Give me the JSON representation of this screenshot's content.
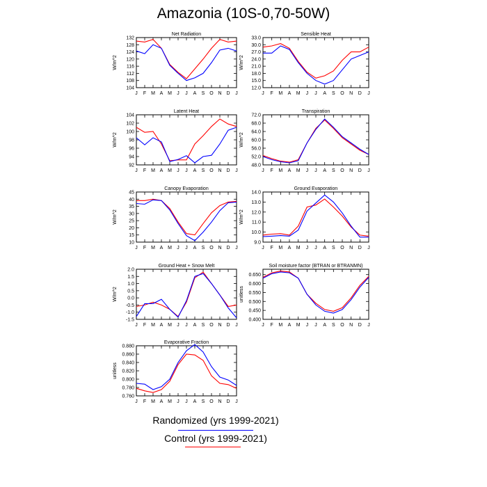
{
  "title": "Amazonia (10S-0,70-50W)",
  "colors": {
    "red": "#ff0000",
    "blue": "#0000ff"
  },
  "legend": {
    "entries": [
      {
        "label": "Randomized (yrs 1999-2021)",
        "color": "#0000ff"
      },
      {
        "label": "Control (yrs 1999-2021)",
        "color": "#ff0000"
      }
    ]
  },
  "chart_data": [
    {
      "type": "line",
      "title": "Net Radiation",
      "ylabel": "W/m^2",
      "categories": [
        "J",
        "F",
        "M",
        "A",
        "M",
        "J",
        "J",
        "A",
        "S",
        "O",
        "N",
        "D",
        "J"
      ],
      "ylim": [
        104,
        132
      ],
      "yticks": [
        "104",
        "108",
        "112",
        "116",
        "120",
        "124",
        "128",
        "132"
      ],
      "series": [
        {
          "color": "#ff0000",
          "values": [
            130,
            129.5,
            131,
            126,
            117,
            112.5,
            109,
            114.5,
            120,
            126,
            131,
            129.5,
            130
          ]
        },
        {
          "color": "#0000ff",
          "values": [
            124.5,
            123,
            128,
            126,
            116.5,
            112,
            108,
            109.5,
            112,
            118,
            125,
            126,
            124.5
          ]
        }
      ]
    },
    {
      "type": "line",
      "title": "Sensible Heat",
      "ylabel": "W/m^2",
      "categories": [
        "J",
        "F",
        "M",
        "A",
        "M",
        "J",
        "J",
        "A",
        "S",
        "O",
        "N",
        "D",
        "J"
      ],
      "ylim": [
        12,
        33
      ],
      "yticks": [
        "12.0",
        "15.0",
        "18.0",
        "21.0",
        "24.0",
        "27.0",
        "30.0",
        "33.0"
      ],
      "series": [
        {
          "color": "#ff0000",
          "values": [
            29,
            29.5,
            30.5,
            28.5,
            23,
            18.5,
            16,
            17,
            19,
            23.5,
            27,
            27,
            29
          ]
        },
        {
          "color": "#0000ff",
          "values": [
            26.5,
            26.5,
            29.5,
            28,
            22.5,
            18,
            15,
            13.5,
            15,
            19.5,
            24,
            25.5,
            27
          ]
        }
      ]
    },
    {
      "type": "line",
      "title": "Latent Heat",
      "ylabel": "W/m^2",
      "categories": [
        "J",
        "F",
        "M",
        "A",
        "M",
        "J",
        "J",
        "A",
        "S",
        "O",
        "N",
        "D",
        "J"
      ],
      "ylim": [
        92,
        104
      ],
      "yticks": [
        "92",
        "94",
        "96",
        "98",
        "100",
        "102",
        "104"
      ],
      "series": [
        {
          "color": "#ff0000",
          "values": [
            101,
            99.8,
            100,
            97,
            93,
            93.2,
            93.2,
            97,
            99,
            101.2,
            103,
            101.8,
            101.2
          ]
        },
        {
          "color": "#0000ff",
          "values": [
            98.5,
            96.8,
            98.5,
            97.5,
            92.8,
            93.3,
            94.2,
            92.5,
            94,
            94.3,
            97,
            100.3,
            101
          ]
        }
      ]
    },
    {
      "type": "line",
      "title": "Transpiration",
      "ylabel": "W/m^2",
      "categories": [
        "J",
        "F",
        "M",
        "A",
        "M",
        "J",
        "J",
        "A",
        "S",
        "O",
        "N",
        "D",
        "J"
      ],
      "ylim": [
        48,
        72
      ],
      "yticks": [
        "48.0",
        "52.0",
        "56.0",
        "60.0",
        "64.0",
        "68.0",
        "72.0"
      ],
      "series": [
        {
          "color": "#ff0000",
          "values": [
            52.5,
            51,
            49.8,
            49.3,
            50.5,
            58.5,
            65.5,
            69.5,
            65.5,
            61,
            58,
            55,
            53
          ]
        },
        {
          "color": "#0000ff",
          "values": [
            52,
            50.5,
            49.5,
            49,
            50,
            58.5,
            65,
            70,
            66,
            61.5,
            58.5,
            55.5,
            53
          ]
        }
      ]
    },
    {
      "type": "line",
      "title": "Canopy Evaporation",
      "ylabel": "W/m^2",
      "categories": [
        "J",
        "F",
        "M",
        "A",
        "M",
        "J",
        "J",
        "A",
        "S",
        "O",
        "N",
        "D",
        "J"
      ],
      "ylim": [
        10,
        45
      ],
      "yticks": [
        "10",
        "15",
        "20",
        "25",
        "30",
        "35",
        "40",
        "45"
      ],
      "series": [
        {
          "color": "#ff0000",
          "values": [
            39,
            39,
            40,
            39,
            33.5,
            24,
            16,
            15,
            23,
            30.5,
            35.5,
            38,
            38.5
          ]
        },
        {
          "color": "#0000ff",
          "values": [
            37,
            36.5,
            39.5,
            39,
            32.5,
            23,
            14.5,
            11,
            17,
            24,
            32,
            37.5,
            38
          ]
        }
      ]
    },
    {
      "type": "line",
      "title": "Ground Evaporation",
      "ylabel": "W/m^2",
      "categories": [
        "J",
        "F",
        "M",
        "A",
        "M",
        "J",
        "J",
        "A",
        "S",
        "O",
        "N",
        "D",
        "J"
      ],
      "ylim": [
        9,
        14
      ],
      "yticks": [
        "9.0",
        "10.0",
        "11.0",
        "12.0",
        "13.0",
        "14.0"
      ],
      "series": [
        {
          "color": "#ff0000",
          "values": [
            9.7,
            9.8,
            9.85,
            9.7,
            10.6,
            12.5,
            12.7,
            13.3,
            12.5,
            11.6,
            10.5,
            9.7,
            9.6
          ]
        },
        {
          "color": "#0000ff",
          "values": [
            9.55,
            9.6,
            9.65,
            9.6,
            10.2,
            12.1,
            12.9,
            13.7,
            13,
            11.9,
            10.6,
            9.5,
            9.5
          ]
        }
      ]
    },
    {
      "type": "line",
      "title": "Ground Heat + Snow Melt",
      "ylabel": "W/m^2",
      "categories": [
        "J",
        "F",
        "M",
        "A",
        "M",
        "J",
        "J",
        "A",
        "S",
        "O",
        "N",
        "D",
        "J"
      ],
      "ylim": [
        -1.5,
        2.0
      ],
      "yticks": [
        "-1.5",
        "-1.0",
        "-0.5",
        "0.0",
        "0.5",
        "1.0",
        "1.5",
        "2.0"
      ],
      "series": [
        {
          "color": "#ff0000",
          "values": [
            -0.6,
            -0.5,
            -0.3,
            -0.5,
            -0.8,
            -1.3,
            -0.3,
            1.4,
            1.8,
            1.0,
            0.2,
            -0.6,
            -0.5
          ]
        },
        {
          "color": "#0000ff",
          "values": [
            -1.3,
            -0.4,
            -0.4,
            -0.1,
            -0.8,
            -1.35,
            -0.2,
            1.5,
            1.7,
            1.0,
            0.2,
            -0.7,
            -1.4
          ]
        }
      ]
    },
    {
      "type": "line",
      "title": "Soil moisture factor (BTRAN or BTRANMN)",
      "ylabel": "unitless",
      "categories": [
        "J",
        "F",
        "M",
        "A",
        "M",
        "J",
        "J",
        "A",
        "S",
        "O",
        "N",
        "D",
        "J"
      ],
      "ylim": [
        0.4,
        0.68
      ],
      "yticks": [
        "0.400",
        "0.450",
        "0.500",
        "0.550",
        "0.600",
        "0.650"
      ],
      "series": [
        {
          "color": "#ff0000",
          "values": [
            0.635,
            0.66,
            0.67,
            0.665,
            0.63,
            0.54,
            0.49,
            0.455,
            0.445,
            0.465,
            0.52,
            0.59,
            0.64
          ]
        },
        {
          "color": "#0000ff",
          "values": [
            0.63,
            0.655,
            0.665,
            0.66,
            0.63,
            0.54,
            0.48,
            0.445,
            0.435,
            0.455,
            0.51,
            0.58,
            0.635
          ]
        }
      ]
    },
    {
      "type": "line",
      "title": "Evaporative Fraction",
      "ylabel": "unitless",
      "categories": [
        "J",
        "F",
        "M",
        "A",
        "M",
        "J",
        "J",
        "A",
        "S",
        "O",
        "N",
        "D",
        "J"
      ],
      "ylim": [
        0.76,
        0.88
      ],
      "yticks": [
        "0.760",
        "0.780",
        "0.800",
        "0.820",
        "0.840",
        "0.860",
        "0.880"
      ],
      "series": [
        {
          "color": "#ff0000",
          "values": [
            0.778,
            0.772,
            0.768,
            0.775,
            0.795,
            0.835,
            0.86,
            0.858,
            0.845,
            0.808,
            0.79,
            0.787,
            0.778
          ]
        },
        {
          "color": "#0000ff",
          "values": [
            0.79,
            0.788,
            0.775,
            0.782,
            0.8,
            0.84,
            0.868,
            0.883,
            0.865,
            0.83,
            0.805,
            0.798,
            0.785
          ]
        }
      ]
    }
  ]
}
